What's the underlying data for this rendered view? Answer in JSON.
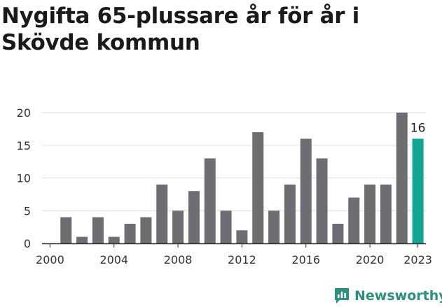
{
  "title": "Nygifta 65-plussare år för år i Skövde kommun",
  "brand": {
    "name": "Newsworthy",
    "icon": "newsworthy-logo-icon",
    "color": "#2e8f7e"
  },
  "colors": {
    "bar": "#6e6d72",
    "highlight": "#12a594",
    "grid": "#dddddd",
    "axis": "#333333"
  },
  "chart_data": {
    "type": "bar",
    "title": "Nygifta 65-plussare år för år i Skövde kommun",
    "xlabel": "",
    "ylabel": "",
    "x": [
      2000,
      2001,
      2002,
      2003,
      2004,
      2005,
      2006,
      2007,
      2008,
      2009,
      2010,
      2011,
      2012,
      2013,
      2014,
      2015,
      2016,
      2017,
      2018,
      2019,
      2020,
      2021,
      2022,
      2023
    ],
    "values": [
      0,
      4,
      1,
      4,
      1,
      3,
      4,
      9,
      5,
      8,
      13,
      5,
      2,
      17,
      5,
      9,
      16,
      13,
      3,
      7,
      9,
      9,
      20,
      16
    ],
    "highlight": 2023,
    "data_labels": [
      {
        "x": 2023,
        "text": "16"
      }
    ],
    "ylim": [
      0,
      20
    ],
    "yticks": [
      0,
      5,
      10,
      15,
      20
    ],
    "xticks": [
      2000,
      2004,
      2008,
      2012,
      2016,
      2020,
      2023
    ],
    "grid": true,
    "legend": "none"
  }
}
